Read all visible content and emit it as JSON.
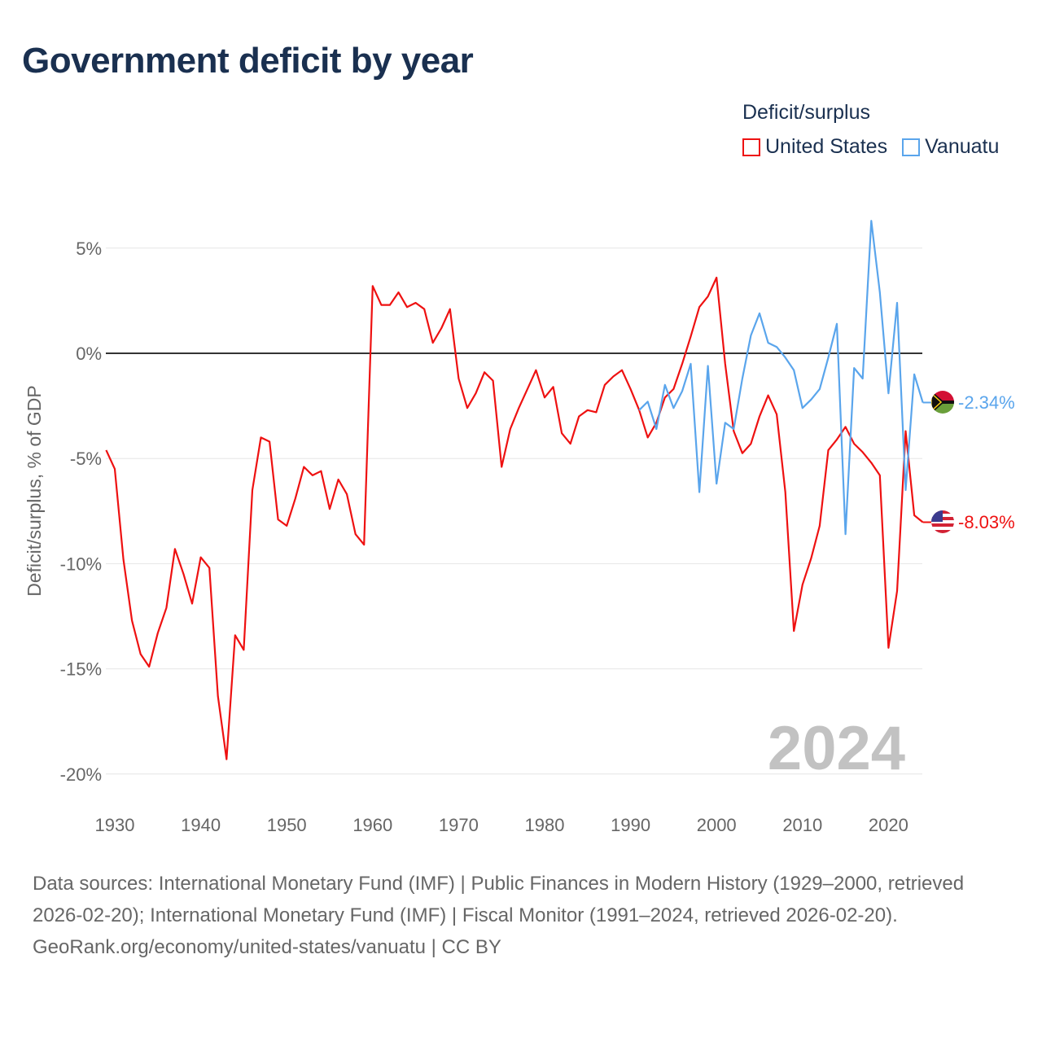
{
  "title": "Government deficit by year",
  "legend": {
    "title": "Deficit/surplus",
    "items": [
      "United States",
      "Vanuatu"
    ]
  },
  "colors": {
    "united_states": "#ee1111",
    "vanuatu": "#5aa5ec",
    "grid": "#e6e6e6",
    "zero": "#333333",
    "year_watermark": "#c2c2c2"
  },
  "year_watermark": "2024",
  "end_labels": {
    "united_states": "-8.03%",
    "vanuatu": "-2.34%"
  },
  "footer": {
    "sources": "Data sources: International Monetary Fund (IMF) | Public Finances in Modern History (1929–2000, retrieved 2026-02-20); International Monetary Fund (IMF) | Fiscal Monitor (1991–2024, retrieved 2026-02-20).",
    "credit": "GeoRank.org/economy/united-states/vanuatu | CC BY"
  },
  "chart_data": {
    "type": "line",
    "title": "Government deficit by year",
    "xlabel": "",
    "ylabel": "Deficit/surplus, % of GDP",
    "xlim": [
      1929,
      2024
    ],
    "ylim": [
      -20,
      6.5
    ],
    "x_ticks": [
      1930,
      1940,
      1950,
      1960,
      1970,
      1980,
      1990,
      2000,
      2010,
      2020
    ],
    "x_tick_labels": [
      "1930",
      "1940",
      "1950",
      "1960",
      "1970",
      "1980",
      "1990",
      "2000",
      "2010",
      "2020"
    ],
    "y_ticks": [
      5,
      0,
      -5,
      -10,
      -15,
      -20
    ],
    "y_tick_labels": [
      "5%",
      "0%",
      "-5%",
      "-10%",
      "-15%",
      "-20%"
    ],
    "grid": true,
    "legend_position": "top-right",
    "series": [
      {
        "name": "United States",
        "start_year": 1929,
        "values": [
          -4.6,
          -5.5,
          -9.8,
          -12.7,
          -14.3,
          -14.9,
          -13.3,
          -12.1,
          -9.3,
          -10.5,
          -11.9,
          -9.7,
          -10.2,
          -16.3,
          -19.3,
          -13.4,
          -14.1,
          -6.5,
          -4.0,
          -4.2,
          -7.9,
          -8.2,
          -6.9,
          -5.4,
          -5.8,
          -5.6,
          -7.4,
          -6.0,
          -6.7,
          -8.6,
          -9.1,
          3.2,
          2.3,
          2.3,
          2.9,
          2.2,
          2.4,
          2.1,
          0.5,
          1.2,
          2.1,
          -1.2,
          -2.6,
          -1.9,
          -0.9,
          -1.3,
          -5.4,
          -3.6,
          -2.6,
          -1.7,
          -0.8,
          -2.1,
          -1.6,
          -3.8,
          -4.3,
          -3.0,
          -2.7,
          -2.8,
          -1.5,
          -1.1,
          -0.8,
          -1.7,
          -2.7,
          -4.0,
          -3.3,
          -2.1,
          -1.7,
          -0.5,
          0.8,
          2.2,
          2.7,
          3.6,
          -0.5,
          -3.7,
          -4.75,
          -4.3,
          -3.0,
          -2.0,
          -2.9,
          -6.6,
          -13.2,
          -11.0,
          -9.75,
          -8.2,
          -4.6,
          -4.1,
          -3.5,
          -4.3,
          -4.7,
          -5.2,
          -5.8,
          -14.0,
          -11.3,
          -3.7,
          -7.7,
          -8.03
        ]
      },
      {
        "name": "Vanuatu",
        "start_year": 1991,
        "values": [
          -2.7,
          -2.3,
          -3.6,
          -1.5,
          -2.6,
          -1.8,
          -0.5,
          -6.6,
          -0.6,
          -6.2,
          -3.3,
          -3.6,
          -1.2,
          0.85,
          1.9,
          0.5,
          0.3,
          -0.2,
          -0.8,
          -2.6,
          -2.2,
          -1.7,
          -0.2,
          1.4,
          -8.6,
          -0.7,
          -1.2,
          6.3,
          2.9,
          -1.9,
          2.4,
          -6.5,
          -1.0,
          -2.34
        ]
      }
    ]
  }
}
